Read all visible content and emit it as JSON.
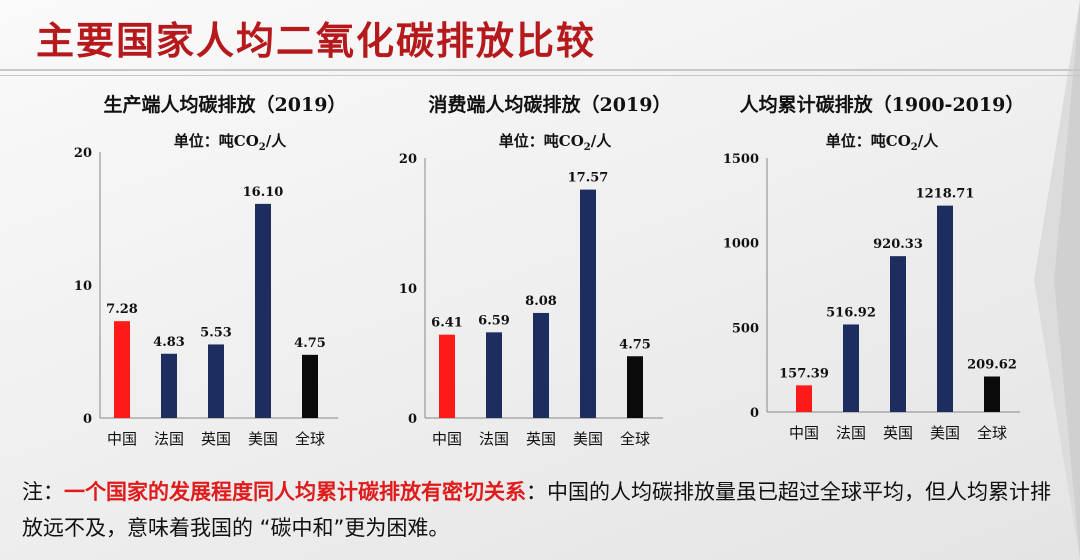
{
  "page": {
    "title": "主要国家人均二氧化碳排放比较"
  },
  "chart_data": [
    {
      "type": "bar",
      "title": "生产端人均碳排放（2019）",
      "unit_prefix": "单位：吨CO",
      "unit_sub": "2",
      "unit_suffix": "/人",
      "categories": [
        "中国",
        "法国",
        "英国",
        "美国",
        "全球"
      ],
      "values": [
        7.28,
        4.83,
        5.53,
        16.1,
        4.75
      ],
      "value_labels": [
        "7.28",
        "4.83",
        "5.53",
        "16.10",
        "4.75"
      ],
      "ylim": [
        0,
        20
      ],
      "yticks": [
        0,
        10,
        20
      ],
      "colors": [
        "#ff1a1a",
        "#1c2d5e",
        "#1c2d5e",
        "#1c2d5e",
        "#0a0a0a"
      ],
      "grid": false
    },
    {
      "type": "bar",
      "title": "消费端人均碳排放（2019）",
      "unit_prefix": "单位：吨CO",
      "unit_sub": "2",
      "unit_suffix": "/人",
      "categories": [
        "中国",
        "法国",
        "英国",
        "美国",
        "全球"
      ],
      "values": [
        6.41,
        6.59,
        8.08,
        17.57,
        4.75
      ],
      "value_labels": [
        "6.41",
        "6.59",
        "8.08",
        "17.57",
        "4.75"
      ],
      "ylim": [
        0,
        20
      ],
      "yticks": [
        0,
        10,
        20
      ],
      "colors": [
        "#ff1a1a",
        "#1c2d5e",
        "#1c2d5e",
        "#1c2d5e",
        "#0a0a0a"
      ],
      "grid": false
    },
    {
      "type": "bar",
      "title": "人均累计碳排放（1900-2019）",
      "unit_prefix": "单位：吨CO",
      "unit_sub": "2",
      "unit_suffix": "/人",
      "categories": [
        "中国",
        "法国",
        "英国",
        "美国",
        "全球"
      ],
      "values": [
        157.39,
        516.92,
        920.33,
        1218.71,
        209.62
      ],
      "value_labels": [
        "157.39",
        "516.92",
        "920.33",
        "1218.71",
        "209.62"
      ],
      "ylim": [
        0,
        1500
      ],
      "yticks": [
        0,
        500,
        1000,
        1500
      ],
      "colors": [
        "#ff1a1a",
        "#1c2d5e",
        "#1c2d5e",
        "#1c2d5e",
        "#0a0a0a"
      ],
      "grid": false
    }
  ],
  "note": {
    "prefix": "注：",
    "highlight": "一个国家的发展程度同人均累计碳排放有密切关系",
    "rest": "：中国的人均碳排放量虽已超过全球平均，但人均累计排放远不及，意味着我国的 “碳中和”更为困难。"
  }
}
